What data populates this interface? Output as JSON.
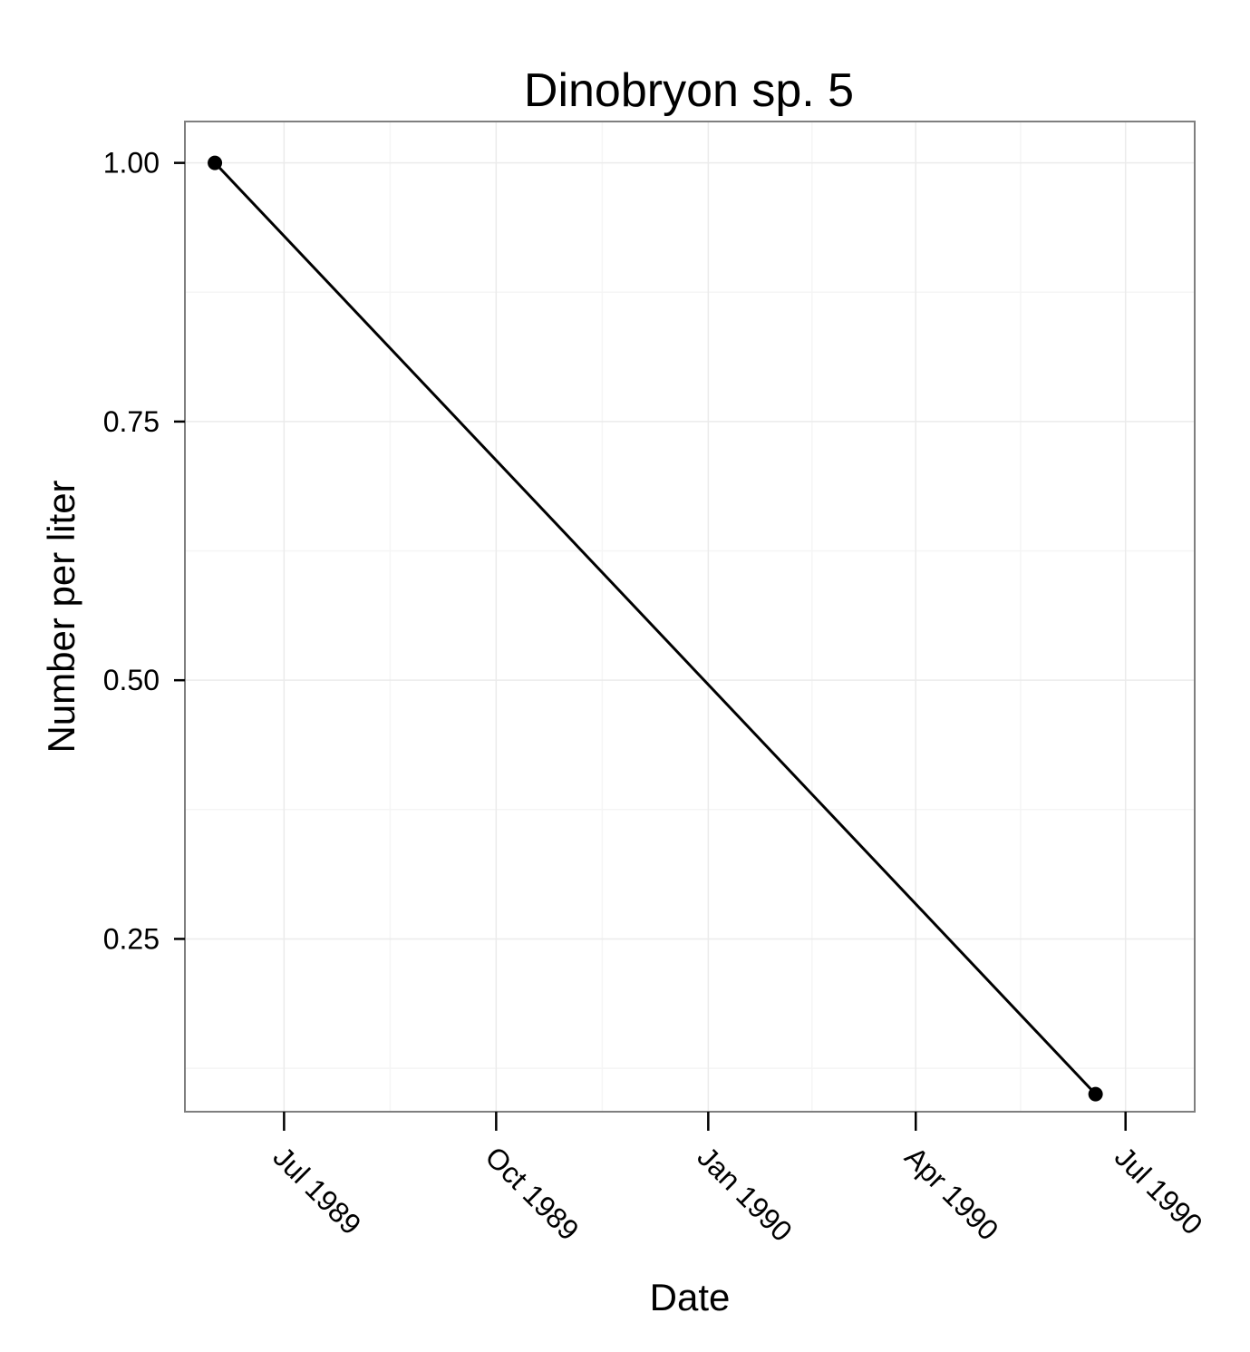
{
  "chart_data": {
    "type": "line",
    "title": "Dinobryon sp. 5",
    "xlabel": "Date",
    "ylabel": "Number per liter",
    "x_scale": "date",
    "xlim": [
      "1989-05-19",
      "1990-07-31"
    ],
    "ylim": [
      0.083,
      1.04
    ],
    "x_ticks": [
      {
        "value": "1989-07-01",
        "label": "Jul 1989"
      },
      {
        "value": "1989-10-01",
        "label": "Oct 1989"
      },
      {
        "value": "1990-01-01",
        "label": "Jan 1990"
      },
      {
        "value": "1990-04-01",
        "label": "Apr 1990"
      },
      {
        "value": "1990-07-01",
        "label": "Jul 1990"
      }
    ],
    "y_ticks": [
      {
        "value": 0.25,
        "label": "0.25"
      },
      {
        "value": 0.5,
        "label": "0.50"
      },
      {
        "value": 0.75,
        "label": "0.75"
      },
      {
        "value": 1.0,
        "label": "1.00"
      }
    ],
    "grid": true,
    "legend": "none",
    "series": [
      {
        "color": "#000000",
        "points": [
          {
            "x": "1989-06-01",
            "y": 1.0
          },
          {
            "x": "1990-06-18",
            "y": 0.1
          }
        ]
      }
    ]
  },
  "colors": {
    "background": "#ffffff",
    "panel_border": "#7f7f7f",
    "grid_major": "#ebebeb",
    "grid_minor": "#f5f5f5",
    "line": "#000000",
    "axis_ticks": "#000000"
  }
}
